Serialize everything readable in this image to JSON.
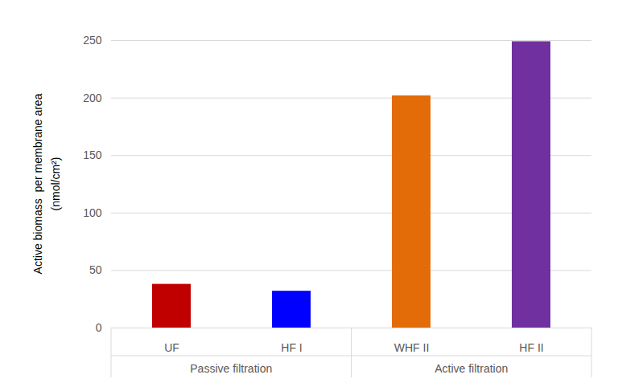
{
  "chart_data": {
    "type": "bar",
    "categories": [
      "UF",
      "HF I",
      "WHF II",
      "HF II"
    ],
    "values": [
      38,
      32,
      202,
      249
    ],
    "colors": [
      "#c00000",
      "#0000ff",
      "#e36c09",
      "#7030a0"
    ],
    "groups": [
      {
        "name": "Passive filtration",
        "categories": [
          "UF",
          "HF I"
        ]
      },
      {
        "name": "Active filtration",
        "categories": [
          "WHF II",
          "HF II"
        ]
      }
    ],
    "y_label": "Active biomass  per membrane area\n(nmol/cm²)",
    "ylim": [
      0,
      250
    ],
    "yticks": [
      0,
      50,
      100,
      150,
      200,
      250
    ],
    "grid": true
  }
}
